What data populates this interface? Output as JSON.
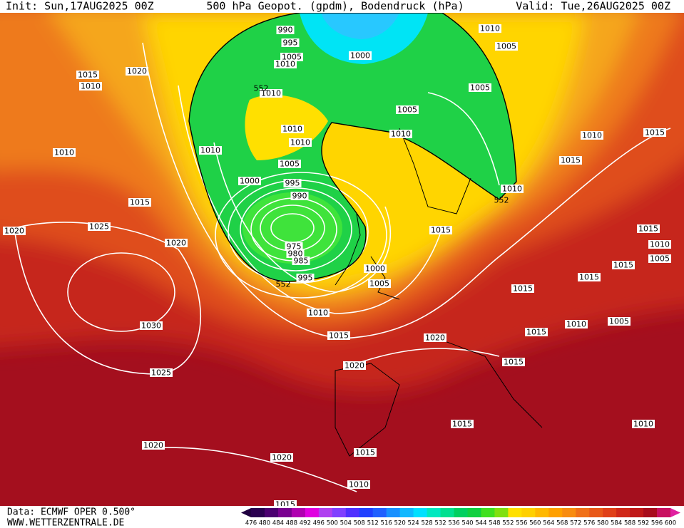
{
  "header": {
    "init": "Init: Sun,17AUG2025 00Z",
    "title": "500 hPa Geopot. (gpdm), Bodendruck (hPa)",
    "valid": "Valid: Tue,26AUG2025 00Z"
  },
  "isobar_labels": [
    "990",
    "995",
    "1005",
    "1010",
    "1000",
    "1010",
    "1005",
    "1005",
    "1005",
    "1010",
    "1010",
    "552",
    "1010",
    "1010",
    "1010",
    "1010",
    "1015",
    "1010",
    "1020",
    "1005",
    "1000",
    "995",
    "990",
    "975",
    "980",
    "985",
    "995",
    "552",
    "1000",
    "1005",
    "1010",
    "1015",
    "1010",
    "1015",
    "1015",
    "1010",
    "552",
    "1015",
    "1015",
    "1025",
    "1020",
    "1020",
    "1030",
    "1025",
    "1020",
    "1020",
    "1020",
    "1020",
    "1015",
    "1015",
    "1015",
    "1010",
    "1005",
    "1015",
    "1015",
    "1015",
    "1010",
    "1005",
    "1015",
    "1015",
    "1010",
    "1010",
    "1015"
  ],
  "colorbar": {
    "labels": [
      "476",
      "480",
      "484",
      "488",
      "492",
      "496",
      "500",
      "504",
      "508",
      "512",
      "516",
      "520",
      "524",
      "528",
      "532",
      "536",
      "540",
      "544",
      "548",
      "552",
      "556",
      "560",
      "564",
      "568",
      "572",
      "576",
      "580",
      "584",
      "588",
      "592",
      "596",
      "600"
    ]
  },
  "footer": {
    "source": "Data: ECMWF OPER 0.500°",
    "site": "WWW.WETTERZENTRALE.DE"
  }
}
